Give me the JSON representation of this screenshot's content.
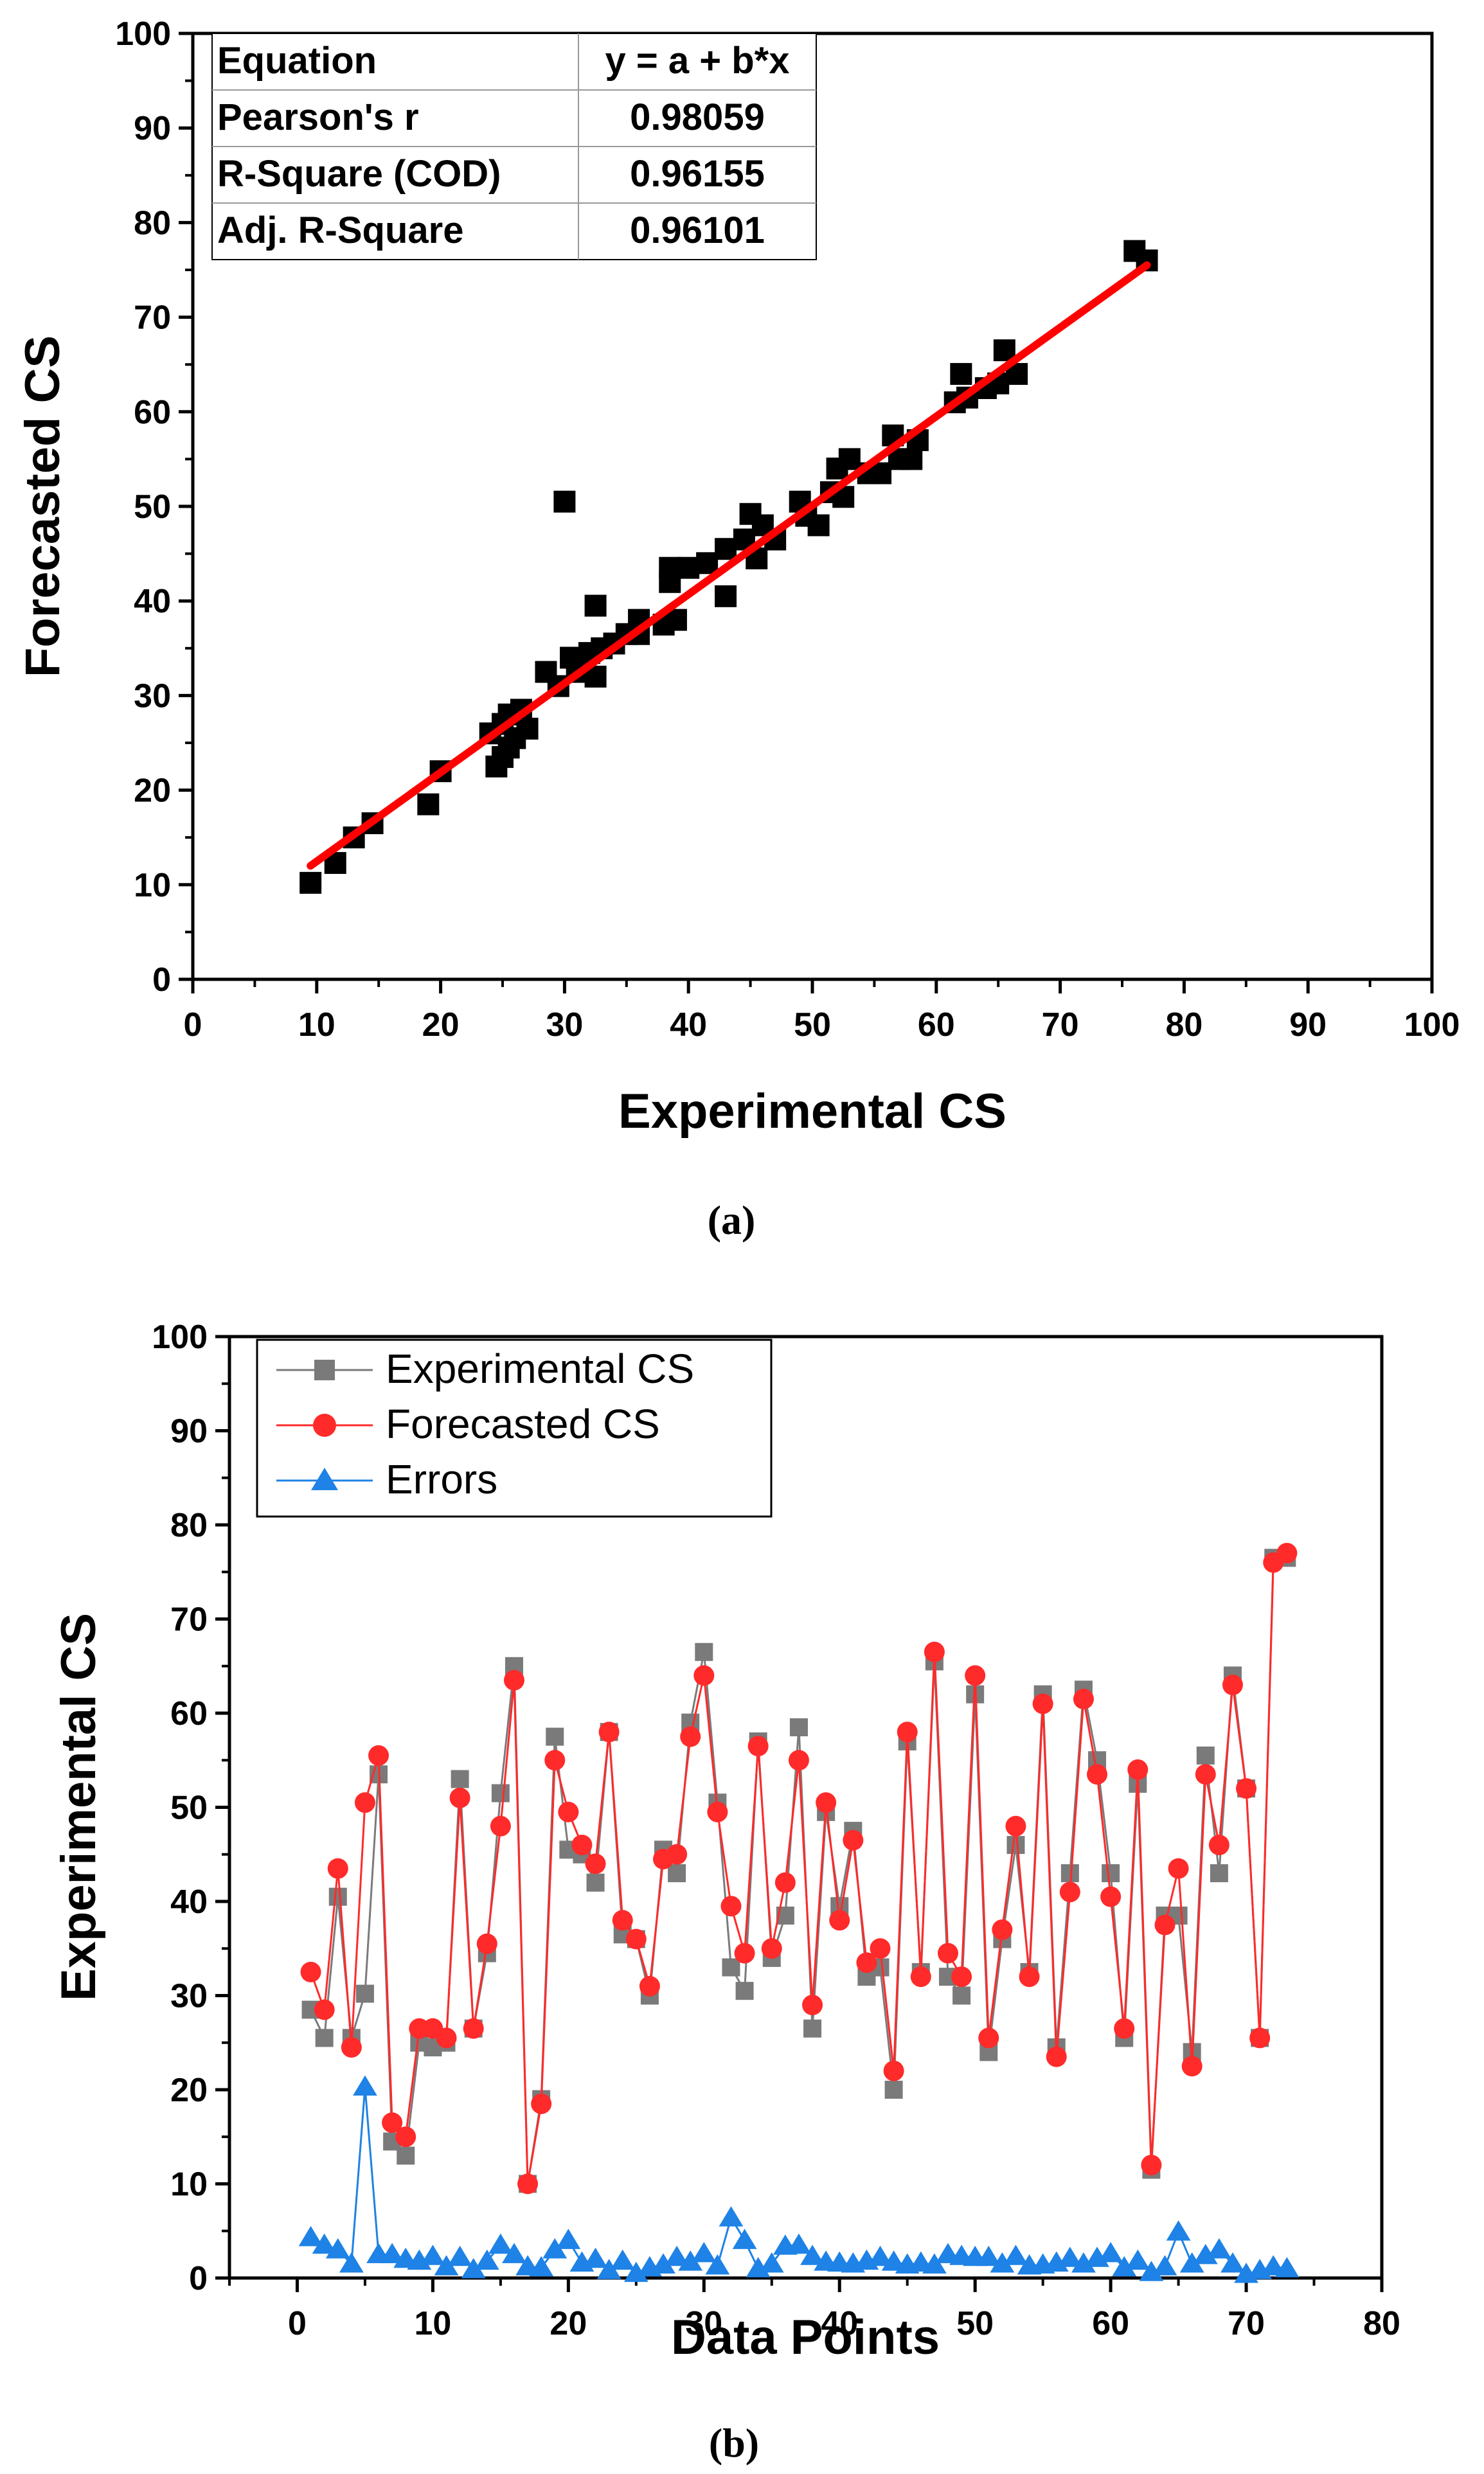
{
  "chart_data": [
    {
      "type": "scatter",
      "caption": "(a)",
      "xlabel": "Experimental CS",
      "ylabel": "Forecasted CS",
      "xlim": [
        0,
        100
      ],
      "ylim": [
        0,
        100
      ],
      "xticks": [
        "0",
        "10",
        "20",
        "30",
        "40",
        "50",
        "60",
        "70",
        "80",
        "90",
        "100"
      ],
      "yticks": [
        "0",
        "10",
        "20",
        "30",
        "40",
        "50",
        "60",
        "70",
        "80",
        "90",
        "100"
      ],
      "fit_line": {
        "color": "#ff0000",
        "x": [
          9.5,
          77
        ],
        "y": [
          12,
          75.5
        ]
      },
      "stats_table": [
        {
          "label": "Equation",
          "value": "y = a + b*x"
        },
        {
          "label": "Pearson's r",
          "value": "0.98059"
        },
        {
          "label": "R-Square (COD)",
          "value": "0.96155"
        },
        {
          "label": "Adj. R-Square",
          "value": "0.96101"
        }
      ],
      "marker_color": "#000000",
      "points": [
        [
          9.5,
          10.2
        ],
        [
          11.5,
          12.3
        ],
        [
          13,
          15
        ],
        [
          14.5,
          16.5
        ],
        [
          19,
          18.5
        ],
        [
          20,
          22
        ],
        [
          24,
          26
        ],
        [
          24.5,
          22.5
        ],
        [
          25,
          27
        ],
        [
          25,
          23.5
        ],
        [
          25.5,
          24.5
        ],
        [
          25.5,
          28
        ],
        [
          26,
          25.5
        ],
        [
          26.5,
          28.5
        ],
        [
          27,
          26.5
        ],
        [
          28.5,
          32.5
        ],
        [
          29.5,
          31
        ],
        [
          30,
          50.5
        ],
        [
          30.5,
          34
        ],
        [
          31,
          32.5
        ],
        [
          32,
          34.5
        ],
        [
          32.5,
          39.5
        ],
        [
          32.5,
          32
        ],
        [
          33,
          35
        ],
        [
          34,
          35.5
        ],
        [
          35,
          36.5
        ],
        [
          36,
          38
        ],
        [
          36,
          36.5
        ],
        [
          38,
          37.5
        ],
        [
          38.5,
          42
        ],
        [
          38.5,
          43.5
        ],
        [
          39,
          38
        ],
        [
          40,
          43.5
        ],
        [
          41.5,
          44
        ],
        [
          43,
          45.5
        ],
        [
          43,
          40.5
        ],
        [
          44.5,
          46.5
        ],
        [
          45,
          49.2
        ],
        [
          45.5,
          44.5
        ],
        [
          46,
          48
        ],
        [
          47,
          46.5
        ],
        [
          49,
          50.5
        ],
        [
          49.5,
          49
        ],
        [
          50.5,
          48
        ],
        [
          51.5,
          51.5
        ],
        [
          52,
          54
        ],
        [
          52.5,
          51
        ],
        [
          53,
          55
        ],
        [
          54.5,
          53.5
        ],
        [
          55.5,
          53.5
        ],
        [
          56.5,
          57.5
        ],
        [
          57,
          55
        ],
        [
          58,
          55
        ],
        [
          58.5,
          57
        ],
        [
          61.5,
          61
        ],
        [
          62,
          64
        ],
        [
          62.5,
          61.5
        ],
        [
          64,
          62.5
        ],
        [
          65,
          63
        ],
        [
          65.5,
          66.5
        ],
        [
          66.5,
          64
        ],
        [
          76,
          77
        ],
        [
          77,
          76
        ]
      ]
    },
    {
      "type": "line",
      "caption": "(b)",
      "xlabel": "Data Points",
      "ylabel": "Experimental CS",
      "xlim": [
        -5,
        80
      ],
      "ylim": [
        0,
        100
      ],
      "xticks": [
        "0",
        "10",
        "20",
        "30",
        "40",
        "50",
        "60",
        "70",
        "80"
      ],
      "yticks": [
        "0",
        "10",
        "20",
        "30",
        "40",
        "50",
        "60",
        "70",
        "80",
        "90",
        "100"
      ],
      "legend_position": "top-left",
      "series": [
        {
          "name": "Experimental CS",
          "color": "#7a7a7a",
          "marker": "square",
          "values": [
            28.5,
            25.5,
            40.5,
            25.5,
            30.2,
            53.5,
            14.5,
            13,
            25,
            24.5,
            25,
            53,
            26.5,
            34.5,
            51.5,
            65,
            10,
            19,
            57.5,
            45.5,
            45,
            42,
            58,
            36.5,
            36,
            30,
            45.5,
            43,
            59,
            66.5,
            50.5,
            33,
            30.5,
            57,
            34,
            38.5,
            58.5,
            26.5,
            49.5,
            39.5,
            47.5,
            32,
            33,
            20,
            57,
            32.5,
            65.5,
            32,
            30,
            62,
            24,
            36,
            46,
            32.5,
            62,
            24.5,
            43,
            62.5,
            55,
            43,
            25.5,
            52.5,
            11.5,
            38.5,
            38.5,
            24,
            55.5,
            43,
            64,
            52,
            25.5,
            76.5,
            76.5
          ]
        },
        {
          "name": "Forecasted CS",
          "color": "#ff2a2a",
          "marker": "circle",
          "values": [
            32.5,
            28.5,
            43.5,
            24.5,
            50.5,
            55.5,
            16.5,
            15,
            26.5,
            26.5,
            25.5,
            51,
            26.5,
            35.5,
            48,
            63.5,
            10,
            18.5,
            55,
            49.5,
            46,
            44,
            58,
            38,
            36,
            31,
            44.5,
            45,
            57.5,
            64,
            49.5,
            39.5,
            34.5,
            56.5,
            35,
            42,
            55,
            29,
            50.5,
            38,
            46.5,
            33.5,
            35,
            22,
            58,
            32,
            66.5,
            34.5,
            32,
            64,
            25.5,
            37,
            48,
            32,
            61,
            23.5,
            41,
            61.5,
            53.5,
            40.5,
            26.5,
            54,
            12,
            37.5,
            43.5,
            22.5,
            53.5,
            46,
            63,
            52,
            25.5,
            76,
            77
          ]
        },
        {
          "name": "Errors",
          "color": "#1e82e6",
          "marker": "triangle",
          "values": [
            4.3,
            3.5,
            3,
            1.5,
            20.3,
            2.5,
            2.5,
            2,
            1.8,
            2.3,
            1.2,
            2.2,
            0.9,
            1.8,
            3.5,
            2.5,
            1.2,
            1.1,
            3,
            4,
            1.6,
            2,
            0.8,
            1.8,
            0.5,
            1.1,
            1.4,
            2.2,
            1.7,
            2.6,
            1.3,
            6.4,
            4,
            1,
            1.5,
            3.4,
            3.5,
            2.3,
            1.7,
            1.6,
            1.5,
            1.8,
            2.2,
            1.7,
            1.4,
            1.6,
            1.4,
            2.5,
            2.3,
            2.2,
            2.2,
            1.5,
            2.3,
            1.3,
            1.4,
            1.6,
            2.1,
            1.5,
            2.1,
            2.6,
            1.1,
            1.8,
            0.6,
            1.2,
            4.9,
            1.5,
            2.4,
            3,
            1.5,
            0.4,
            0.8,
            1.2,
            1
          ]
        }
      ]
    }
  ]
}
